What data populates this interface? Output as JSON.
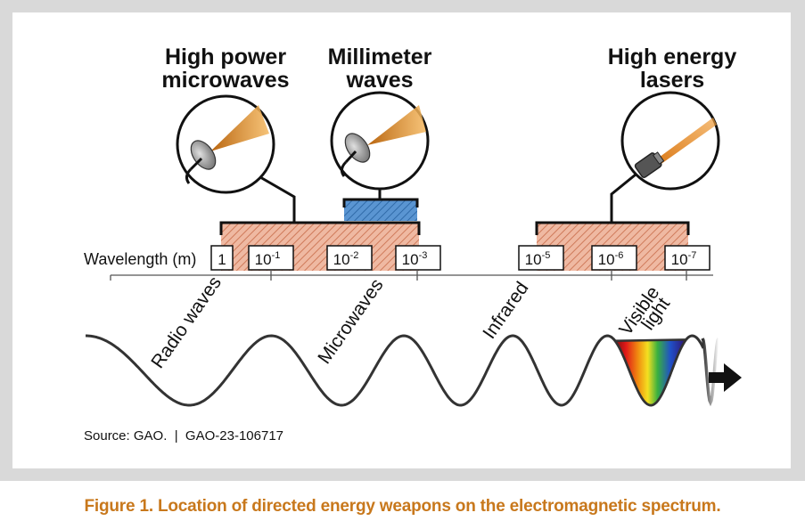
{
  "weapons": [
    {
      "line1": "High power",
      "line2": "microwaves"
    },
    {
      "line1": "Millimeter",
      "line2": "waves"
    },
    {
      "line1": "High energy",
      "line2": "lasers"
    }
  ],
  "axis": {
    "label": "Wavelength (m)",
    "ticks": [
      {
        "base": "1",
        "exp": ""
      },
      {
        "base": "10",
        "exp": "-1"
      },
      {
        "base": "10",
        "exp": "-2"
      },
      {
        "base": "10",
        "exp": "-3"
      },
      {
        "base": "10",
        "exp": "-5"
      },
      {
        "base": "10",
        "exp": "-6"
      },
      {
        "base": "10",
        "exp": "-7"
      }
    ]
  },
  "bands": [
    {
      "name": "Radio waves"
    },
    {
      "name": "Microwaves"
    },
    {
      "name": "Infrared"
    },
    {
      "line1": "Visible",
      "line2": "light"
    }
  ],
  "source": "Source: GAO.  |  GAO-23-106717",
  "caption": "Figure 1. Location of directed energy weapons on the electromagnetic spectrum.",
  "colors": {
    "hatch": "#e9a98f",
    "hatch_stroke": "#c86a4c",
    "millimeter_band": "#4a86c6",
    "beam": "#e08a1e",
    "caption": "#c8781c"
  }
}
